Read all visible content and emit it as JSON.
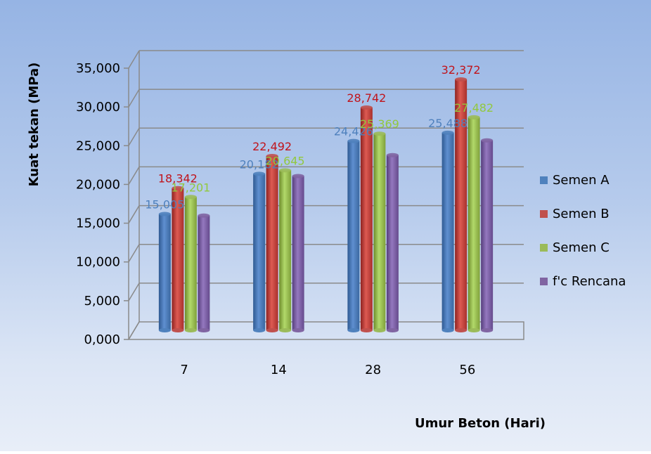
{
  "chart_data": {
    "type": "bar",
    "title": "",
    "xlabel": "Umur Beton (Hari)",
    "ylabel": "Kuat tekan (MPa)",
    "ylim": [
      0,
      35000
    ],
    "ytick_values": [
      0,
      5000,
      10000,
      15000,
      20000,
      25000,
      30000,
      35000
    ],
    "ytick_labels": [
      "0,000",
      "5,000",
      "10,000",
      "15,000",
      "20,000",
      "25,000",
      "30,000",
      "35,000"
    ],
    "categories": [
      "7",
      "14",
      "28",
      "56"
    ],
    "grid": true,
    "legend_position": "right",
    "series": [
      {
        "name": "Semen A",
        "color": "#4f81bd",
        "label_color": "#4f81bd",
        "values": [
          15005,
          20182,
          24426,
          25488
        ],
        "data_labels": [
          "15,005",
          "20,182",
          "24,426",
          "25,488"
        ]
      },
      {
        "name": "Semen B",
        "color": "#c0504d",
        "label_color": "#c0141c",
        "values": [
          18342,
          22492,
          28742,
          32372
        ],
        "data_labels": [
          "18,342",
          "22,492",
          "28,742",
          "32,372"
        ]
      },
      {
        "name": "Semen C",
        "color": "#9bbb59",
        "label_color": "#92c83e",
        "values": [
          17201,
          20645,
          25369,
          27482
        ],
        "data_labels": [
          "17,201",
          "20,645",
          "25,369",
          "27,482"
        ]
      },
      {
        "name": "f'c Rencana",
        "color": "#8064a2",
        "label_color": "#8064a2",
        "values": [
          14800,
          19900,
          22600,
          24500
        ],
        "data_labels": []
      }
    ]
  }
}
